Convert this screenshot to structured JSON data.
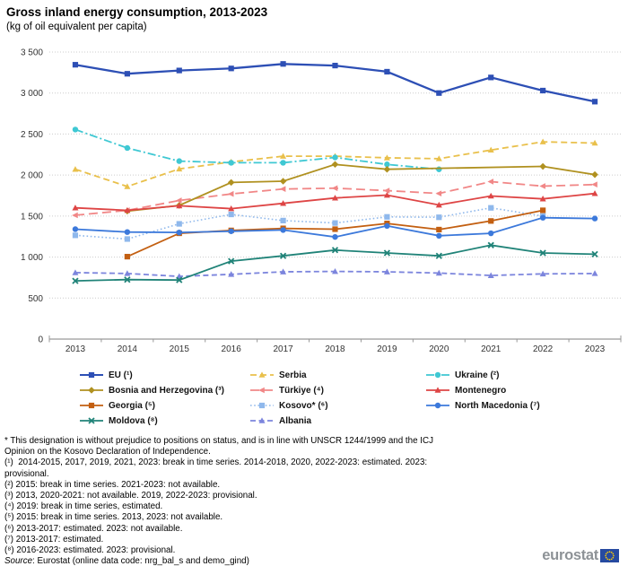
{
  "header": {
    "title": "Gross inland energy consumption, 2013-2023",
    "subtitle": "(kg of oil equivalent per capita)"
  },
  "chart_data": {
    "type": "line",
    "x": [
      2013,
      2014,
      2015,
      2016,
      2017,
      2018,
      2019,
      2020,
      2021,
      2022,
      2023
    ],
    "ylim": [
      0,
      3500
    ],
    "ytick_step": 500,
    "ytick_labels": [
      "0",
      "500",
      "1 000",
      "1 500",
      "2 000",
      "2 500",
      "3 000",
      "3 500"
    ],
    "grid": "horizontal-dotted",
    "legend_position": "bottom",
    "series": [
      {
        "name": "Serbia",
        "legend": "Serbia",
        "legend_col": 1,
        "legend_row": 0,
        "color": "#E9C04B",
        "dash": "7,4",
        "marker": "tri-up",
        "width": 1.8,
        "values": [
          2070,
          1860,
          2075,
          2160,
          2230,
          2230,
          2210,
          2200,
          2305,
          2405,
          2390
        ]
      },
      {
        "name": "Ukraine",
        "legend": "Ukraine (²)",
        "legend_col": 2,
        "legend_row": 0,
        "color": "#3FC8D3",
        "dash": "9,3,2,3",
        "marker": "circle",
        "width": 1.8,
        "values": [
          2555,
          2330,
          2170,
          2150,
          2150,
          2215,
          2130,
          2070,
          null,
          null,
          null
        ]
      },
      {
        "name": "Türkiye",
        "legend": "Türkiye (⁴)",
        "legend_col": 1,
        "legend_row": 1,
        "color": "#F18787",
        "dash": "10,5",
        "marker": "tri-left",
        "width": 1.8,
        "values": [
          1510,
          1570,
          1690,
          1770,
          1830,
          1840,
          1810,
          1775,
          1920,
          1865,
          1885
        ]
      },
      {
        "name": "Kosovo",
        "legend": "Kosovo* (⁶)",
        "legend_col": 1,
        "legend_row": 2,
        "color": "#8FB8EC",
        "dash": "1.6,2.6",
        "marker": "square",
        "width": 1.6,
        "values": [
          1265,
          1220,
          1405,
          1520,
          1445,
          1415,
          1490,
          1485,
          1600,
          1500,
          null
        ]
      },
      {
        "name": "Albania",
        "legend": "Albania",
        "legend_col": 1,
        "legend_row": 3,
        "color": "#7C85DD",
        "dash": "6,3.5",
        "marker": "tri-up",
        "width": 1.8,
        "values": [
          810,
          800,
          765,
          790,
          820,
          825,
          820,
          805,
          775,
          795,
          800
        ]
      },
      {
        "name": "Bosnia and Herzegovina",
        "legend": "Bosnia and Herzegovina (³)",
        "legend_col": 0,
        "legend_row": 1,
        "color": "#B09120",
        "dash": "",
        "marker": "diamond",
        "width": 1.8,
        "values": [
          null,
          1560,
          1630,
          1910,
          1925,
          2130,
          2070,
          null,
          null,
          2105,
          2005
        ]
      },
      {
        "name": "Georgia",
        "legend": "Georgia (⁵)",
        "legend_col": 0,
        "legend_row": 2,
        "color": "#C35F11",
        "dash": "",
        "marker": "square",
        "width": 1.8,
        "values": [
          null,
          1005,
          1290,
          1325,
          1350,
          1340,
          1410,
          1335,
          1440,
          1570,
          null
        ]
      },
      {
        "name": "Moldova",
        "legend": "Moldova (⁸)",
        "legend_col": 0,
        "legend_row": 3,
        "color": "#208378",
        "dash": "",
        "marker": "xmark",
        "width": 1.8,
        "values": [
          710,
          725,
          720,
          950,
          1015,
          1085,
          1050,
          1015,
          1145,
          1050,
          1035
        ]
      },
      {
        "name": "Montenegro",
        "legend": "Montenegro",
        "legend_col": 2,
        "legend_row": 1,
        "color": "#DE4545",
        "dash": "",
        "marker": "tri-up",
        "width": 1.8,
        "values": [
          1600,
          1570,
          1625,
          1590,
          1655,
          1720,
          1755,
          1635,
          1745,
          1710,
          1775
        ]
      },
      {
        "name": "North Macedonia",
        "legend": "North Macedonia (⁷)",
        "legend_col": 2,
        "legend_row": 2,
        "color": "#3C79DB",
        "dash": "",
        "marker": "circle",
        "width": 1.8,
        "values": [
          1340,
          1305,
          1300,
          1315,
          1330,
          1245,
          1380,
          1260,
          1290,
          1480,
          1470
        ]
      },
      {
        "name": "EU",
        "legend": "EU (¹)",
        "legend_col": 0,
        "legend_row": 0,
        "color": "#2D4FB5",
        "dash": "",
        "marker": "square",
        "width": 2.3,
        "values": [
          3345,
          3235,
          3275,
          3300,
          3355,
          3335,
          3260,
          3000,
          3190,
          3030,
          2895
        ]
      }
    ]
  },
  "footnotes": {
    "lines": [
      "* This designation is without prejudice to positions on status, and is in line with UNSCR 1244/1999 and the ICJ",
      "Opinion on the Kosovo Declaration of Independence.",
      "(¹)  2014-2015, 2017, 2019, 2021, 2023: break in time series. 2014-2018, 2020, 2022-2023: estimated. 2023:",
      "provisional.",
      "(²) 2015: break in time series. 2021-2023: not available.",
      "(³) 2013, 2020-2021: not available. 2019, 2022-2023: provisional.",
      "(⁴) 2019: break in time series, estimated.",
      "(⁵) 2015: break in time series. 2013, 2023: not available.",
      "(⁶) 2013-2017: estimated. 2023: not available.",
      "(⁷) 2013-2017: estimated.",
      "(⁸) 2016-2023: estimated. 2023: provisional."
    ]
  },
  "source": {
    "label": "Source",
    "text": ": Eurostat (online data code: nrg_bal_s and demo_gind)"
  },
  "logo": {
    "text": "eurostat"
  }
}
